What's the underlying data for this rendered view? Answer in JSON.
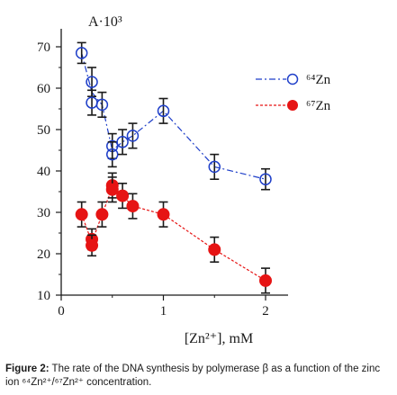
{
  "chart_data": {
    "type": "scatter",
    "ylabel": "A·10³",
    "xlabel": "[Zn²⁺], mM",
    "xlim": [
      0,
      2.2
    ],
    "ylim": [
      10,
      72
    ],
    "xticks": [
      0,
      1,
      2
    ],
    "yticks": [
      10,
      20,
      30,
      40,
      50,
      60,
      70
    ],
    "legend_position": "top-right",
    "series": [
      {
        "name": "⁶⁴Zn",
        "color": "#1f3fc9",
        "marker": "open-circle",
        "line": "dash-dot",
        "points": [
          {
            "x": 0.2,
            "y": 68.5,
            "err": 2.5
          },
          {
            "x": 0.3,
            "y": 61.5,
            "err": 3.5
          },
          {
            "x": 0.3,
            "y": 56.5,
            "err": 3.0
          },
          {
            "x": 0.4,
            "y": 56.0,
            "err": 3.0
          },
          {
            "x": 0.5,
            "y": 46.0,
            "err": 3.0
          },
          {
            "x": 0.5,
            "y": 44.0,
            "err": 3.0
          },
          {
            "x": 0.6,
            "y": 47.0,
            "err": 3.0
          },
          {
            "x": 0.7,
            "y": 48.5,
            "err": 3.0
          },
          {
            "x": 1.0,
            "y": 54.5,
            "err": 3.0
          },
          {
            "x": 1.5,
            "y": 41.0,
            "err": 3.0
          },
          {
            "x": 2.0,
            "y": 38.0,
            "err": 2.5
          }
        ]
      },
      {
        "name": "⁶⁷Zn",
        "color": "#e61414",
        "marker": "filled-circle",
        "line": "dashed",
        "points": [
          {
            "x": 0.2,
            "y": 29.5,
            "err": 3.0
          },
          {
            "x": 0.3,
            "y": 23.5,
            "err": 2.5
          },
          {
            "x": 0.3,
            "y": 22.0,
            "err": 2.5
          },
          {
            "x": 0.4,
            "y": 29.5,
            "err": 3.0
          },
          {
            "x": 0.5,
            "y": 36.5,
            "err": 3.0
          },
          {
            "x": 0.5,
            "y": 35.5,
            "err": 3.0
          },
          {
            "x": 0.6,
            "y": 34.0,
            "err": 3.0
          },
          {
            "x": 0.7,
            "y": 31.5,
            "err": 3.0
          },
          {
            "x": 1.0,
            "y": 29.5,
            "err": 3.0
          },
          {
            "x": 1.5,
            "y": 21.0,
            "err": 3.0
          },
          {
            "x": 2.0,
            "y": 13.5,
            "err": 3.0
          }
        ]
      }
    ]
  },
  "caption": {
    "label": "Figure 2:",
    "text": " The rate of the DNA synthesis by polymerase β as a function of the zinc ion ⁶⁴Zn²⁺/⁶⁷Zn²⁺ concentration."
  }
}
